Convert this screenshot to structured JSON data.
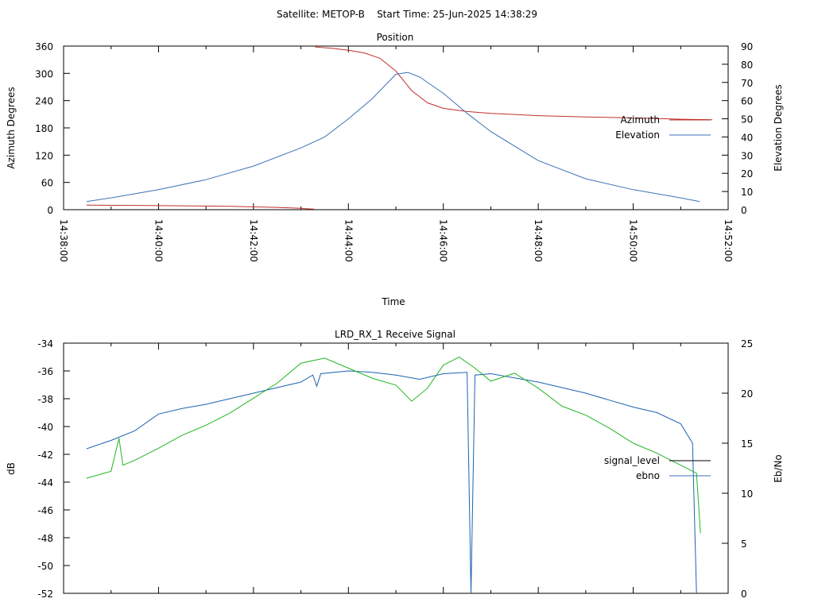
{
  "page_title": "Satellite: METOP-B    Start Time: 25-Jun-2025 14:38:29",
  "colors": {
    "azimuth": "#c0302a",
    "elevation": "#3d72b8",
    "signal_level": "#1c62b0",
    "ebno": "#22b522",
    "axis": "#000000"
  },
  "chart_data": [
    {
      "type": "line",
      "title": "Position",
      "xlabel": "Time",
      "ylabel": "Azimuth Degrees",
      "y2label": "Elevation Degrees",
      "xlim": [
        "14:38:00",
        "14:52:00"
      ],
      "ylim": [
        0,
        360
      ],
      "y2lim": [
        0,
        90
      ],
      "x_ticks": [
        "14:38:00",
        "14:40:00",
        "14:42:00",
        "14:44:00",
        "14:46:00",
        "14:48:00",
        "14:50:00",
        "14:52:00"
      ],
      "y_ticks": [
        "0",
        "60",
        "120",
        "180",
        "240",
        "300",
        "360"
      ],
      "y2_ticks": [
        "0",
        "10",
        "20",
        "30",
        "40",
        "50",
        "60",
        "70",
        "80",
        "90"
      ],
      "legend_position": "right",
      "series": [
        {
          "name": "Azimuth",
          "axis": "left",
          "points": [
            [
              "14:38:29",
              10
            ],
            [
              "14:39:30",
              9.5
            ],
            [
              "14:40:30",
              8.5
            ],
            [
              "14:41:30",
              7.5
            ],
            [
              "14:42:30",
              5
            ],
            [
              "14:43:00",
              3
            ],
            [
              "14:43:17",
              1
            ],
            [
              "14:43:18",
              358
            ],
            [
              "14:43:40",
              355
            ],
            [
              "14:44:00",
              351
            ],
            [
              "14:44:20",
              345
            ],
            [
              "14:44:40",
              333
            ],
            [
              "14:45:00",
              305
            ],
            [
              "14:45:20",
              262
            ],
            [
              "14:45:40",
              235
            ],
            [
              "14:46:00",
              223
            ],
            [
              "14:46:30",
              216
            ],
            [
              "14:47:00",
              212
            ],
            [
              "14:48:00",
              207
            ],
            [
              "14:49:00",
              204
            ],
            [
              "14:50:00",
              202
            ],
            [
              "14:51:00",
              199
            ],
            [
              "14:51:40",
              198
            ]
          ]
        },
        {
          "name": "Elevation",
          "axis": "right",
          "points": [
            [
              "14:38:29",
              4.5
            ],
            [
              "14:39:00",
              6.5
            ],
            [
              "14:40:00",
              11
            ],
            [
              "14:41:00",
              16.5
            ],
            [
              "14:42:00",
              24
            ],
            [
              "14:43:00",
              34
            ],
            [
              "14:43:30",
              40
            ],
            [
              "14:44:00",
              50
            ],
            [
              "14:44:30",
              61
            ],
            [
              "14:45:00",
              74.5
            ],
            [
              "14:45:15",
              75.5
            ],
            [
              "14:45:30",
              73
            ],
            [
              "14:46:00",
              64
            ],
            [
              "14:46:30",
              53
            ],
            [
              "14:47:00",
              43
            ],
            [
              "14:48:00",
              27
            ],
            [
              "14:49:00",
              17
            ],
            [
              "14:50:00",
              11
            ],
            [
              "14:51:00",
              6.5
            ],
            [
              "14:51:24",
              4.5
            ]
          ]
        }
      ]
    },
    {
      "type": "line",
      "title": "LRD_RX_1 Receive Signal",
      "ylabel": "dB",
      "y2label": "Eb/No",
      "ylim": [
        -52,
        -34
      ],
      "y2lim": [
        0,
        25
      ],
      "y_ticks": [
        "-34",
        "-36",
        "-38",
        "-40",
        "-42",
        "-44",
        "-46",
        "-48",
        "-50",
        "-52"
      ],
      "y2_ticks": [
        "0",
        "5",
        "10",
        "15",
        "20",
        "25"
      ],
      "legend_position": "right",
      "series": [
        {
          "name": "signal_level",
          "axis": "left",
          "points": [
            [
              "14:38:29",
              -41.6
            ],
            [
              "14:39:00",
              -41.0
            ],
            [
              "14:39:30",
              -40.3
            ],
            [
              "14:40:00",
              -39.1
            ],
            [
              "14:40:30",
              -38.7
            ],
            [
              "14:41:00",
              -38.4
            ],
            [
              "14:41:30",
              -38.0
            ],
            [
              "14:42:00",
              -37.6
            ],
            [
              "14:42:30",
              -37.2
            ],
            [
              "14:43:00",
              -36.8
            ],
            [
              "14:43:15",
              -36.3
            ],
            [
              "14:43:20",
              -37.1
            ],
            [
              "14:43:25",
              -36.2
            ],
            [
              "14:44:00",
              -36.0
            ],
            [
              "14:44:30",
              -36.1
            ],
            [
              "14:45:00",
              -36.3
            ],
            [
              "14:45:30",
              -36.6
            ],
            [
              "14:46:00",
              -36.2
            ],
            [
              "14:46:30",
              -36.1
            ],
            [
              "14:46:35",
              -52
            ],
            [
              "14:46:40",
              -36.3
            ],
            [
              "14:47:00",
              -36.2
            ],
            [
              "14:47:30",
              -36.5
            ],
            [
              "14:48:00",
              -36.8
            ],
            [
              "14:48:30",
              -37.2
            ],
            [
              "14:49:00",
              -37.6
            ],
            [
              "14:49:30",
              -38.1
            ],
            [
              "14:50:00",
              -38.6
            ],
            [
              "14:50:30",
              -39.0
            ],
            [
              "14:51:00",
              -39.8
            ],
            [
              "14:51:15",
              -41.2
            ],
            [
              "14:51:20",
              -52
            ]
          ]
        },
        {
          "name": "ebno",
          "axis": "right",
          "points": [
            [
              "14:38:29",
              11.5
            ],
            [
              "14:39:00",
              12.2
            ],
            [
              "14:39:10",
              15.5
            ],
            [
              "14:39:15",
              12.8
            ],
            [
              "14:39:30",
              13.3
            ],
            [
              "14:40:00",
              14.5
            ],
            [
              "14:40:30",
              15.8
            ],
            [
              "14:41:00",
              16.8
            ],
            [
              "14:41:30",
              18.0
            ],
            [
              "14:42:00",
              19.5
            ],
            [
              "14:42:30",
              21.0
            ],
            [
              "14:43:00",
              23.0
            ],
            [
              "14:43:30",
              23.5
            ],
            [
              "14:44:00",
              22.5
            ],
            [
              "14:44:30",
              21.5
            ],
            [
              "14:45:00",
              20.8
            ],
            [
              "14:45:20",
              19.2
            ],
            [
              "14:45:40",
              20.5
            ],
            [
              "14:46:00",
              22.8
            ],
            [
              "14:46:20",
              23.6
            ],
            [
              "14:46:40",
              22.5
            ],
            [
              "14:47:00",
              21.2
            ],
            [
              "14:47:30",
              22.0
            ],
            [
              "14:48:00",
              20.5
            ],
            [
              "14:48:30",
              18.7
            ],
            [
              "14:49:00",
              17.8
            ],
            [
              "14:49:30",
              16.5
            ],
            [
              "14:50:00",
              15.0
            ],
            [
              "14:50:30",
              14.0
            ],
            [
              "14:51:00",
              12.8
            ],
            [
              "14:51:20",
              12.0
            ],
            [
              "14:51:25",
              6.0
            ]
          ]
        }
      ]
    }
  ]
}
